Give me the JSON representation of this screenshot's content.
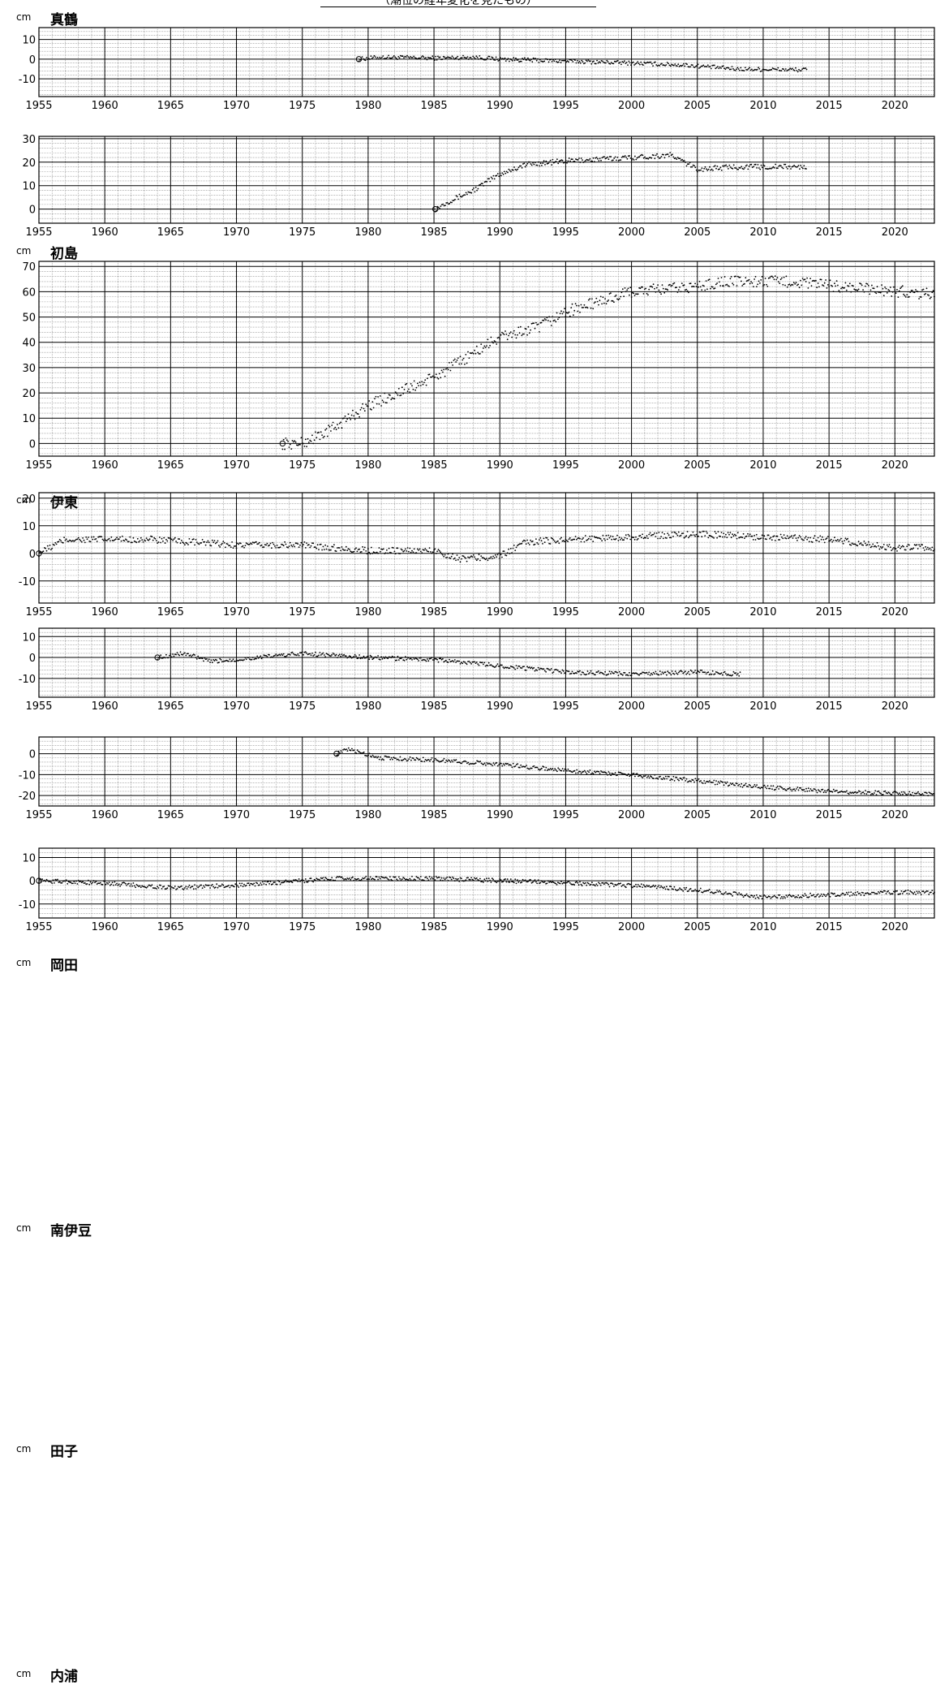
{
  "title": "（潮位の経年変化を見たもの）",
  "chart_data": [
    {
      "type": "scatter",
      "station": "真鶴",
      "unit": "cm",
      "xlim": [
        1955,
        2023
      ],
      "ylim": [
        -19,
        16
      ],
      "yticks": [
        10,
        0,
        -10
      ],
      "xticks": [
        1955,
        1960,
        1965,
        1970,
        1975,
        1980,
        1985,
        1990,
        1995,
        2000,
        2005,
        2010,
        2015,
        2020
      ],
      "start": 1979.3,
      "end": 2013.3,
      "series": [
        [
          1979.3,
          0
        ],
        [
          1981,
          1
        ],
        [
          1985,
          0.5
        ],
        [
          1988,
          1
        ],
        [
          1990,
          0
        ],
        [
          1995,
          -1
        ],
        [
          2000,
          -2
        ],
        [
          2004,
          -3
        ],
        [
          2008,
          -5
        ],
        [
          2013.3,
          -5.5
        ]
      ]
    },
    {
      "type": "scatter",
      "station": "初島",
      "unit": "cm",
      "xlim": [
        1955,
        2023
      ],
      "ylim": [
        -6,
        31
      ],
      "yticks": [
        30,
        20,
        10,
        0
      ],
      "xticks": [
        1955,
        1960,
        1965,
        1970,
        1975,
        1980,
        1985,
        1990,
        1995,
        2000,
        2005,
        2010,
        2015,
        2020
      ],
      "start": 1985.1,
      "end": 2013.3,
      "series": [
        [
          1985.1,
          0
        ],
        [
          1986,
          3
        ],
        [
          1988,
          8
        ],
        [
          1990,
          15
        ],
        [
          1992,
          19
        ],
        [
          1995,
          20.5
        ],
        [
          2000,
          22
        ],
        [
          2003,
          23
        ],
        [
          2004,
          20
        ],
        [
          2005,
          17
        ],
        [
          2008,
          18
        ],
        [
          2013.3,
          18
        ]
      ]
    },
    {
      "type": "scatter",
      "station": "伊東",
      "unit": "cm",
      "xlim": [
        1955,
        2023
      ],
      "ylim": [
        -5,
        72
      ],
      "yticks": [
        70,
        60,
        50,
        40,
        30,
        20,
        10,
        0
      ],
      "xticks": [
        1955,
        1960,
        1965,
        1970,
        1975,
        1980,
        1985,
        1990,
        1995,
        2000,
        2005,
        2010,
        2015,
        2020
      ],
      "start": 1973.5,
      "end": 2023,
      "series": [
        [
          1973.5,
          0
        ],
        [
          1975,
          0
        ],
        [
          1977,
          5
        ],
        [
          1980,
          15
        ],
        [
          1985,
          26
        ],
        [
          1990,
          42
        ],
        [
          1993,
          46
        ],
        [
          1995,
          52
        ],
        [
          2000,
          60
        ],
        [
          2005,
          62
        ],
        [
          2007,
          64
        ],
        [
          2012,
          64
        ],
        [
          2018,
          61
        ],
        [
          2023,
          59
        ]
      ]
    },
    {
      "type": "scatter",
      "station": "岡田",
      "unit": "cm",
      "xlim": [
        1955,
        2023
      ],
      "ylim": [
        -18,
        22
      ],
      "yticks": [
        20,
        10,
        0,
        -10
      ],
      "xticks": [
        1955,
        1960,
        1965,
        1970,
        1975,
        1980,
        1985,
        1990,
        1995,
        2000,
        2005,
        2010,
        2015,
        2020
      ],
      "start": 1955,
      "end": 2023,
      "series": [
        [
          1955,
          0
        ],
        [
          1957,
          5
        ],
        [
          1960,
          5
        ],
        [
          1963.5,
          5
        ],
        [
          1970,
          3
        ],
        [
          1975,
          3
        ],
        [
          1980,
          1
        ],
        [
          1985,
          1
        ],
        [
          1987,
          -2
        ],
        [
          1990,
          -1
        ],
        [
          1992,
          4
        ],
        [
          1995,
          5
        ],
        [
          2000,
          6
        ],
        [
          2005,
          7
        ],
        [
          2010,
          6
        ],
        [
          2015,
          5
        ],
        [
          2020,
          2
        ],
        [
          2023,
          2
        ]
      ]
    },
    {
      "type": "scatter",
      "station": "南伊豆",
      "unit": "cm",
      "xlim": [
        1955,
        2023
      ],
      "ylim": [
        -19,
        14
      ],
      "yticks": [
        10,
        0,
        -10
      ],
      "xticks": [
        1955,
        1960,
        1965,
        1970,
        1975,
        1980,
        1985,
        1990,
        1995,
        2000,
        2005,
        2010,
        2015,
        2020
      ],
      "start": 1964,
      "end": 2008.3,
      "series": [
        [
          1964,
          0
        ],
        [
          1966,
          2
        ],
        [
          1968,
          -2
        ],
        [
          1970,
          -1
        ],
        [
          1975,
          2
        ],
        [
          1980,
          0
        ],
        [
          1985,
          -1
        ],
        [
          1990,
          -4
        ],
        [
          1995,
          -7
        ],
        [
          2000,
          -8
        ],
        [
          2005,
          -7
        ],
        [
          2008.3,
          -8
        ]
      ]
    },
    {
      "type": "scatter",
      "station": "田子",
      "unit": "cm",
      "xlim": [
        1955,
        2023
      ],
      "ylim": [
        -25,
        8
      ],
      "yticks": [
        0,
        -10,
        -20
      ],
      "xticks": [
        1955,
        1960,
        1965,
        1970,
        1975,
        1980,
        1985,
        1990,
        1995,
        2000,
        2005,
        2010,
        2015,
        2020
      ],
      "start": 1977.6,
      "end": 2023,
      "series": [
        [
          1977.6,
          0
        ],
        [
          1978.5,
          2
        ],
        [
          1981,
          -2
        ],
        [
          1985,
          -3
        ],
        [
          1990,
          -5
        ],
        [
          1995,
          -8
        ],
        [
          2000,
          -10
        ],
        [
          2005,
          -13
        ],
        [
          2010,
          -16
        ],
        [
          2015,
          -18
        ],
        [
          2023,
          -19.5
        ]
      ]
    },
    {
      "type": "scatter",
      "station": "内浦",
      "unit": "cm",
      "xlim": [
        1955,
        2023
      ],
      "ylim": [
        -16,
        14
      ],
      "yticks": [
        10,
        0,
        -10
      ],
      "xticks": [
        1955,
        1960,
        1965,
        1970,
        1975,
        1980,
        1985,
        1990,
        1995,
        2000,
        2005,
        2010,
        2015,
        2020
      ],
      "start": 1955,
      "end": 2023,
      "series": [
        [
          1955,
          0
        ],
        [
          1960,
          -1
        ],
        [
          1965,
          -3
        ],
        [
          1970,
          -2
        ],
        [
          1975,
          0
        ],
        [
          1978,
          1
        ],
        [
          1985,
          1
        ],
        [
          1990,
          0
        ],
        [
          1995,
          -1
        ],
        [
          2000,
          -2
        ],
        [
          2005,
          -4
        ],
        [
          2010,
          -7
        ],
        [
          2015,
          -6
        ],
        [
          2020,
          -5
        ],
        [
          2023,
          -5
        ]
      ]
    }
  ]
}
